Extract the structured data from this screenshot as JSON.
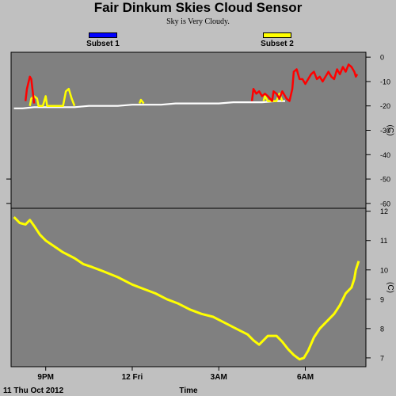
{
  "title": "Fair Dinkum Skies Cloud Sensor",
  "subtitle": "Sky is Very Cloudy.",
  "legend": [
    {
      "label": "Subset 1",
      "color": "#0000ff"
    },
    {
      "label": "Subset 2",
      "color": "#ffff00"
    }
  ],
  "colors": {
    "plot_bg": "#808080",
    "page_bg": "#c0c0c0",
    "sky_white": "#ffffff",
    "sky_red": "#ff0000",
    "ambient_yellow": "#ffff00"
  },
  "chart_data": [
    {
      "type": "line",
      "name": "sky temperature",
      "ylabel": "(C)",
      "ylim": [
        -62,
        2
      ],
      "yticks": [
        0,
        -10,
        -20,
        -30,
        -40,
        -50,
        -60
      ],
      "xlim": [
        19.8,
        32.1
      ],
      "series": [
        {
          "name": "",
          "color": "#ffffff",
          "x": [
            19.9,
            20.2,
            20.6,
            21.0,
            21.5,
            22.0,
            22.5,
            23.0,
            23.5,
            24.0,
            24.5,
            25.0,
            25.5,
            26.0,
            26.5,
            27.0,
            27.5,
            28.0,
            28.5,
            29.0,
            29.3
          ],
          "y": [
            -21,
            -21,
            -20.5,
            -20.5,
            -20.5,
            -20.5,
            -20,
            -20,
            -20,
            -19.5,
            -19.5,
            -19.5,
            -19,
            -19,
            -19,
            -19,
            -18.5,
            -18.5,
            -18.5,
            -18,
            -18
          ]
        },
        {
          "name": "",
          "color": "#ffff00",
          "x": [
            20.45,
            20.5,
            20.6,
            20.7,
            20.75,
            20.8,
            20.9,
            21.0,
            21.05,
            21.6,
            21.7,
            21.8,
            21.9,
            22.0,
            24.25,
            24.3,
            24.4,
            28.55,
            28.6,
            28.7,
            29.0,
            29.1,
            29.2
          ],
          "y": [
            -20,
            -17,
            -16,
            -17,
            -20,
            -20,
            -20,
            -16,
            -20,
            -20,
            -14,
            -13,
            -17,
            -20,
            -19,
            -17.5,
            -19,
            -18,
            -16,
            -18,
            -18,
            -15,
            -18
          ]
        },
        {
          "name": "",
          "color": "#ff0000",
          "x": [
            20.3,
            20.35,
            20.45,
            20.5,
            20.55,
            20.6,
            28.15,
            28.2,
            28.3,
            28.4,
            28.5,
            28.6,
            28.7,
            28.85,
            28.9,
            29.0,
            29.1,
            29.2,
            29.35,
            29.45,
            29.55,
            29.6,
            29.7,
            29.8,
            29.9,
            30.0,
            30.2,
            30.3,
            30.4,
            30.5,
            30.6,
            30.7,
            30.8,
            30.9,
            31.0,
            31.1,
            31.2,
            31.3,
            31.4,
            31.5,
            31.6,
            31.7,
            31.75,
            31.8
          ],
          "y": [
            -18,
            -13,
            -8,
            -9,
            -14,
            -19,
            -18,
            -13,
            -15,
            -14,
            -16,
            -15,
            -16,
            -18,
            -14,
            -15,
            -17,
            -14,
            -17,
            -18,
            -13,
            -6,
            -5,
            -9,
            -9,
            -11,
            -7,
            -6,
            -9,
            -8,
            -10,
            -8,
            -6,
            -8,
            -9,
            -5,
            -7,
            -4,
            -6,
            -3,
            -4,
            -6,
            -8,
            -7
          ]
        }
      ]
    },
    {
      "type": "line",
      "name": "ambient temperature",
      "ylabel": "(C)",
      "ylim": [
        6.7,
        12.1
      ],
      "yticks": [
        12,
        11,
        10,
        9,
        8,
        7
      ],
      "xlim": [
        19.8,
        32.1
      ],
      "xlabel": "Time",
      "xtick_labels": [
        {
          "x": 21,
          "label": "9PM"
        },
        {
          "x": 24,
          "label": "12 Fri"
        },
        {
          "x": 27,
          "label": "3AM"
        },
        {
          "x": 30,
          "label": "6AM"
        }
      ],
      "date_label": "11 Thu Oct 2012",
      "series": [
        {
          "name": "",
          "color": "#ffff00",
          "x": [
            19.9,
            20.1,
            20.3,
            20.45,
            20.6,
            20.8,
            21.0,
            21.3,
            21.6,
            22.0,
            22.3,
            22.6,
            23.0,
            23.5,
            24.0,
            24.4,
            24.8,
            25.2,
            25.6,
            26.0,
            26.4,
            26.8,
            27.2,
            27.6,
            28.0,
            28.2,
            28.4,
            28.7,
            29.0,
            29.2,
            29.4,
            29.6,
            29.8,
            29.95,
            30.1,
            30.3,
            30.5,
            30.7,
            31.0,
            31.2,
            31.4,
            31.6,
            31.7,
            31.75,
            31.85
          ],
          "y": [
            11.8,
            11.6,
            11.55,
            11.7,
            11.5,
            11.2,
            11.0,
            10.8,
            10.6,
            10.4,
            10.2,
            10.1,
            9.95,
            9.75,
            9.5,
            9.35,
            9.2,
            9.0,
            8.85,
            8.65,
            8.5,
            8.4,
            8.2,
            8.0,
            7.8,
            7.6,
            7.45,
            7.75,
            7.75,
            7.55,
            7.3,
            7.1,
            6.95,
            7.0,
            7.25,
            7.7,
            8.0,
            8.2,
            8.5,
            8.8,
            9.2,
            9.4,
            9.7,
            10.0,
            10.3
          ]
        }
      ]
    }
  ]
}
